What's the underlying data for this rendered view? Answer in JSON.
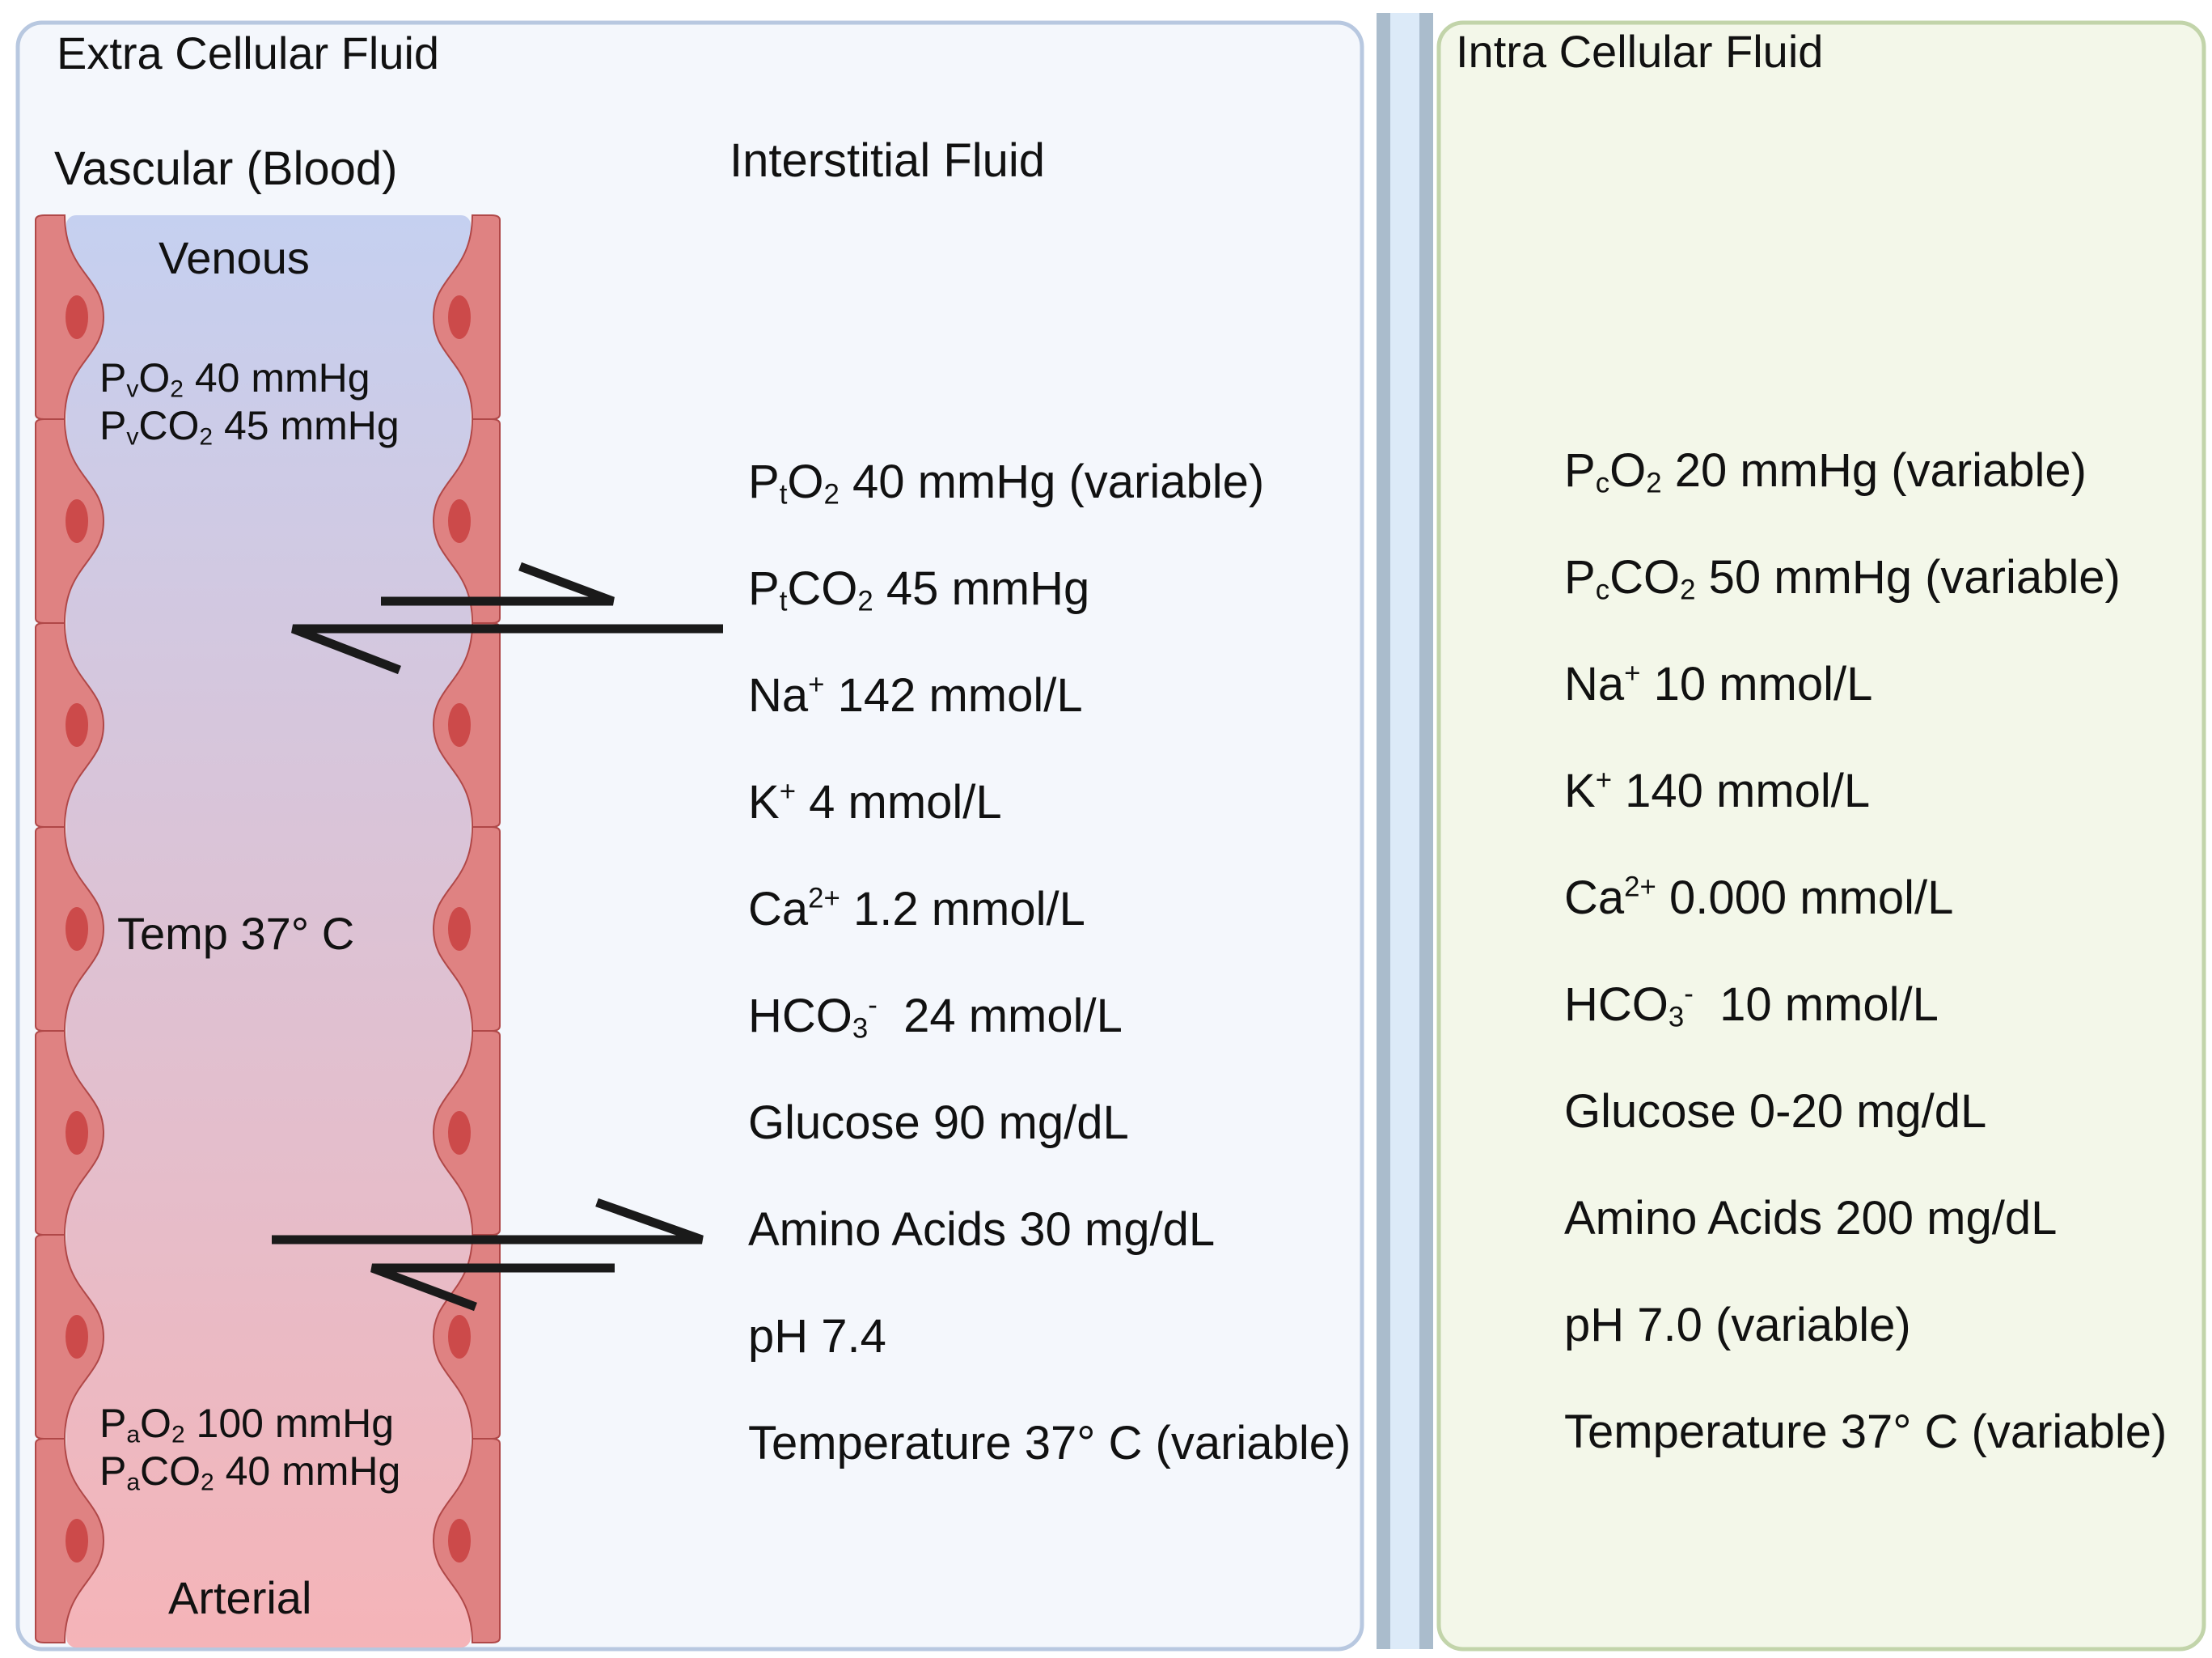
{
  "colors": {
    "ecf_border": "#b8c8e0",
    "ecf_bg": "#f4f7fc",
    "icf_border": "#c2d4aa",
    "icf_bg": "#f3f7e9",
    "membrane": "#aabccc",
    "membrane_gap": "#dceaf8",
    "blood_venous": "#c5d0f0",
    "blood_arterial": "#f5b4b8",
    "endothelium": "#df8282",
    "endothelium_stroke": "#b04848",
    "nucleus": "#cc4a4a",
    "arrow": "#1a1a1a"
  },
  "icons": [
    "endothelial-cell-icon",
    "equilibrium-arrow-icon"
  ],
  "ecf": {
    "title": "Extra Cellular Fluid",
    "vascular_title": "Vascular (Blood)",
    "interstitial_title": "Interstitial Fluid",
    "venous_label": "Venous",
    "arterial_label": "Arterial",
    "temp_label": "Temp 37° C",
    "venous_gases": [
      {
        "p": "P",
        "s": "v",
        "gas": "O",
        "n": "2",
        "rest": " 40 mmHg"
      },
      {
        "p": "P",
        "s": "v",
        "gas": "CO",
        "n": "2",
        "rest": " 45 mmHg"
      }
    ],
    "arterial_gases": [
      {
        "p": "P",
        "s": "a",
        "gas": "O",
        "n": "2",
        "rest": " 100 mmHg"
      },
      {
        "p": "P",
        "s": "a",
        "gas": "CO",
        "n": "2",
        "rest": " 40 mmHg"
      }
    ],
    "interstitial_values": [
      {
        "pre": "P",
        "sub1": "t",
        "mid": "O",
        "sub2": "2",
        "sup": "",
        "post": " 40 mmHg (variable)"
      },
      {
        "pre": "P",
        "sub1": "t",
        "mid": "CO",
        "sub2": "2",
        "sup": "",
        "post": " 45 mmHg"
      },
      {
        "pre": "Na",
        "sub1": "",
        "mid": "",
        "sub2": "",
        "sup": "+",
        "post": " 142 mmol/L"
      },
      {
        "pre": "K",
        "sub1": "",
        "mid": "",
        "sub2": "",
        "sup": "+",
        "post": " 4 mmol/L"
      },
      {
        "pre": "Ca",
        "sub1": "",
        "mid": "",
        "sub2": "",
        "sup": "2+",
        "post": " 1.2 mmol/L"
      },
      {
        "pre": "HCO",
        "sub1": "",
        "mid": "",
        "sub2": "3",
        "sup": "-",
        "post": "  24 mmol/L"
      },
      {
        "pre": "Glucose 90 mg/dL",
        "sub1": "",
        "mid": "",
        "sub2": "",
        "sup": "",
        "post": ""
      },
      {
        "pre": "Amino Acids 30 mg/dL",
        "sub1": "",
        "mid": "",
        "sub2": "",
        "sup": "",
        "post": ""
      },
      {
        "pre": "pH 7.4",
        "sub1": "",
        "mid": "",
        "sub2": "",
        "sup": "",
        "post": ""
      },
      {
        "pre": "Temperature 37° C (variable)",
        "sub1": "",
        "mid": "",
        "sub2": "",
        "sup": "",
        "post": ""
      }
    ]
  },
  "icf": {
    "title": "Intra Cellular Fluid",
    "values": [
      {
        "pre": "P",
        "sub1": "c",
        "mid": "O",
        "sub2": "2",
        "sup": "",
        "post": " 20 mmHg (variable)"
      },
      {
        "pre": "P",
        "sub1": "c",
        "mid": "CO",
        "sub2": "2",
        "sup": "",
        "post": " 50 mmHg (variable)"
      },
      {
        "pre": "Na",
        "sub1": "",
        "mid": "",
        "sub2": "",
        "sup": "+",
        "post": " 10 mmol/L"
      },
      {
        "pre": "K",
        "sub1": "",
        "mid": "",
        "sub2": "",
        "sup": "+",
        "post": " 140 mmol/L"
      },
      {
        "pre": "Ca",
        "sub1": "",
        "mid": "",
        "sub2": "",
        "sup": "2+",
        "post": " 0.000 mmol/L"
      },
      {
        "pre": "HCO",
        "sub1": "",
        "mid": "",
        "sub2": "3",
        "sup": "-",
        "post": "  10 mmol/L"
      },
      {
        "pre": "Glucose 0-20 mg/dL",
        "sub1": "",
        "mid": "",
        "sub2": "",
        "sup": "",
        "post": ""
      },
      {
        "pre": "Amino Acids 200 mg/dL",
        "sub1": "",
        "mid": "",
        "sub2": "",
        "sup": "",
        "post": ""
      },
      {
        "pre": "pH 7.0 (variable)",
        "sub1": "",
        "mid": "",
        "sub2": "",
        "sup": "",
        "post": ""
      },
      {
        "pre": "Temperature 37° C (variable)",
        "sub1": "",
        "mid": "",
        "sub2": "",
        "sup": "",
        "post": ""
      }
    ]
  }
}
